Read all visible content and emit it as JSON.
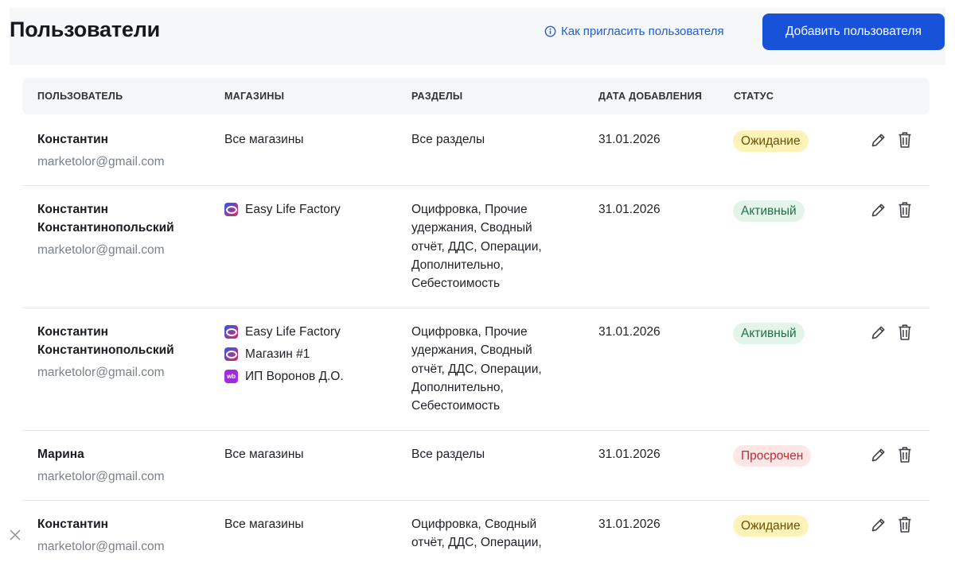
{
  "header": {
    "title": "Пользователи",
    "invite_link": "Как пригласить пользователя",
    "add_button": "Добавить пользователя"
  },
  "table": {
    "columns": [
      "ПОЛЬЗОВАТЕЛЬ",
      "МАГАЗИНЫ",
      "РАЗДЕЛЫ",
      "ДАТА ДОБАВЛЕНИЯ",
      "СТАТУС"
    ],
    "rows": [
      {
        "name_lines": [
          "Константин"
        ],
        "email": "marketolor@gmail.com",
        "stores_text": "Все магазины",
        "sections_lines": [
          "Все разделы"
        ],
        "date": "31.01.2026",
        "status": "Ожидание"
      },
      {
        "name_lines": [
          "Константин",
          "Константинопольский"
        ],
        "email": "marketolor@gmail.com",
        "stores": [
          {
            "icon": "ozon-icon",
            "name": "Easy Life Factory"
          }
        ],
        "sections_lines": [
          "Оцифровка, Прочие",
          "удержания, Сводный",
          "отчёт, ДДС, Операции,",
          "Дополнительно,",
          "Себестоимость"
        ],
        "date": "31.01.2026",
        "status": "Активный"
      },
      {
        "name_lines": [
          "Константин",
          "Константинопольский"
        ],
        "email": "marketolor@gmail.com",
        "stores": [
          {
            "icon": "ozon-icon",
            "name": "Easy Life Factory"
          },
          {
            "icon": "ozon-icon",
            "name": "Магазин #1"
          },
          {
            "icon": "wildberries-icon",
            "icon_text": "wb",
            "name": "ИП Воронов Д.О."
          }
        ],
        "sections_lines": [
          "Оцифровка, Прочие",
          "удержания, Сводный",
          "отчёт, ДДС, Операции,",
          "Дополнительно,",
          "Себестоимость"
        ],
        "date": "31.01.2026",
        "status": "Активный"
      },
      {
        "name_lines": [
          "Марина"
        ],
        "email": "marketolor@gmail.com",
        "stores_text": "Все магазины",
        "sections_lines": [
          "Все разделы"
        ],
        "date": "31.01.2026",
        "status": "Просрочен"
      },
      {
        "name_lines": [
          "Константин"
        ],
        "email": "marketolor@gmail.com",
        "stores_text": "Все магазины",
        "sections_lines": [
          "Оцифровка, Сводный",
          "отчёт, ДДС, Операции,"
        ],
        "date": "31.01.2026",
        "status": "Ожидание"
      }
    ]
  },
  "colors": {
    "accent": "#1752d8",
    "status_wait_bg": "#fdf2b8",
    "status_active_bg": "#e3f5ea",
    "status_expired_bg": "#fde6e6"
  }
}
